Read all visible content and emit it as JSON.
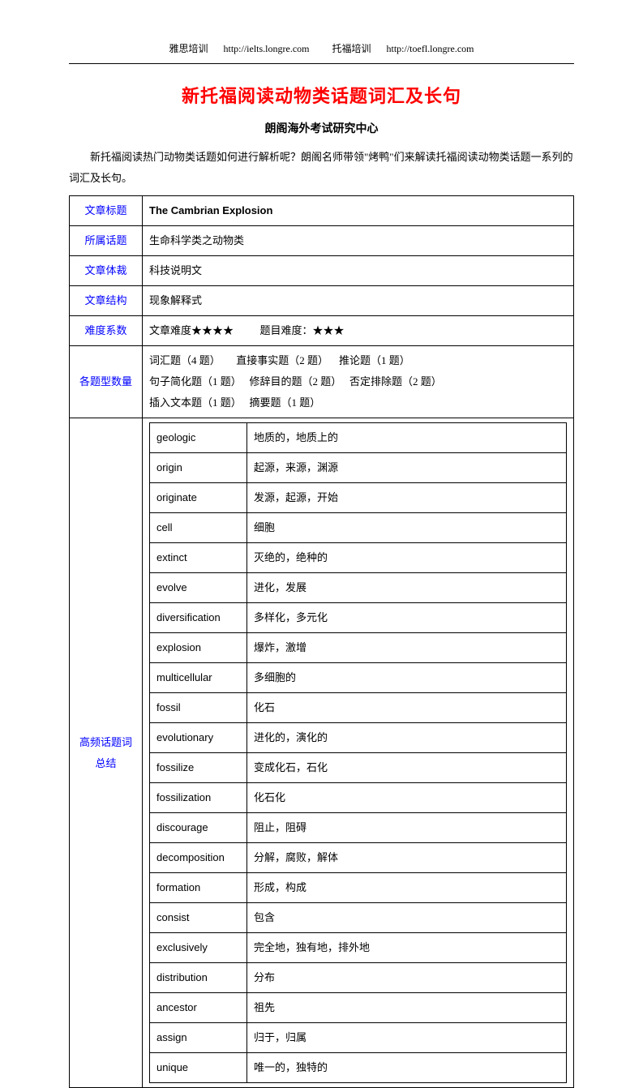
{
  "header": {
    "left_label": "雅思培训",
    "left_url": "http://ielts.longre.com",
    "right_label": "托福培训",
    "right_url": "http://toefl.longre.com"
  },
  "title": "新托福阅读动物类话题词汇及长句",
  "subtitle": "朗阁海外考试研究中心",
  "intro": "新托福阅读热门动物类话题如何进行解析呢？朗阁名师带领\"烤鸭\"们来解读托福阅读动物类话题一系列的词汇及长句。",
  "table": {
    "row1": {
      "label": "文章标题",
      "value": "The Cambrian Explosion"
    },
    "row2": {
      "label": "所属话题",
      "value": "生命科学类之动物类"
    },
    "row3": {
      "label": "文章体裁",
      "value": "科技说明文"
    },
    "row4": {
      "label": "文章结构",
      "value": "现象解释式"
    },
    "row5": {
      "label": "难度系数",
      "value": "文章难度★★★★          题目难度：★★★"
    },
    "row6": {
      "label": "各题型数量",
      "line1": "词汇题（4 题）      直接事实题（2 题）    推论题（1 题）",
      "line2": "句子简化题（1 题）   修辞目的题（2 题）   否定排除题（2 题）",
      "line3": "插入文本题（1 题）   摘要题（1 题）"
    },
    "row7": {
      "label1": "高频话题词",
      "label2": "总结",
      "vocab": [
        {
          "w": "geologic",
          "d": "地质的，地质上的"
        },
        {
          "w": "origin",
          "d": "起源，来源，渊源"
        },
        {
          "w": "originate",
          "d": "发源，起源，开始"
        },
        {
          "w": "cell",
          "d": "细胞"
        },
        {
          "w": "extinct",
          "d": "灭绝的，绝种的"
        },
        {
          "w": "evolve",
          "d": "进化，发展"
        },
        {
          "w": "diversification",
          "d": "多样化，多元化"
        },
        {
          "w": "explosion",
          "d": "爆炸，激增"
        },
        {
          "w": "multicellular",
          "d": "多细胞的"
        },
        {
          "w": "fossil",
          "d": "化石"
        },
        {
          "w": "evolutionary",
          "d": "进化的，演化的"
        },
        {
          "w": "fossilize",
          "d": "变成化石，石化"
        },
        {
          "w": "fossilization",
          "d": "化石化"
        },
        {
          "w": "discourage",
          "d": "阻止，阻碍"
        },
        {
          "w": "decomposition",
          "d": "分解，腐败，解体"
        },
        {
          "w": "formation",
          "d": "形成，构成"
        },
        {
          "w": "consist",
          "d": "包含"
        },
        {
          "w": "exclusively",
          "d": "完全地，独有地，排外地"
        },
        {
          "w": "distribution",
          "d": "分布"
        },
        {
          "w": "ancestor",
          "d": "祖先"
        },
        {
          "w": "assign",
          "d": "归于，归属"
        },
        {
          "w": "unique",
          "d": "唯一的，独特的"
        }
      ]
    }
  }
}
